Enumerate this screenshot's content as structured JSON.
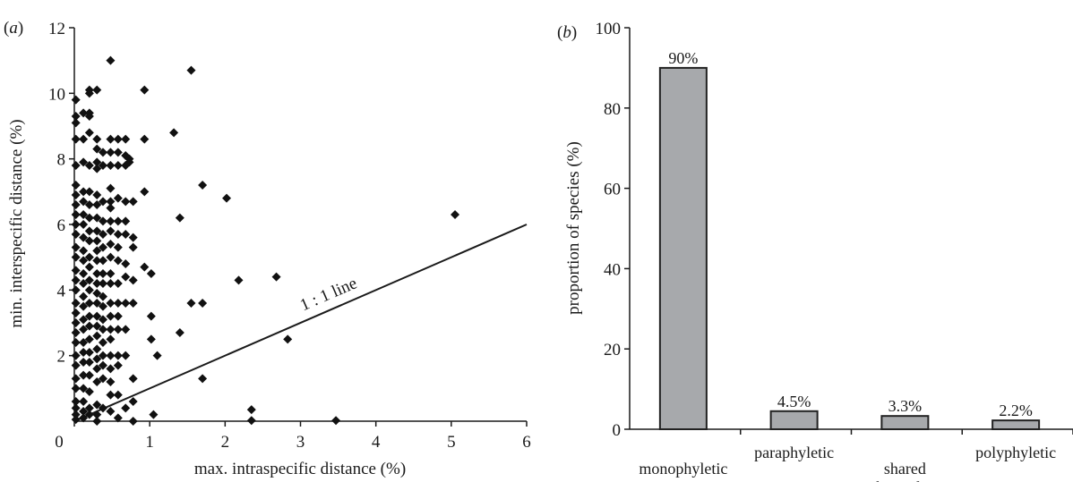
{
  "chart_data": [
    {
      "type": "scatter",
      "panel_letter": "a",
      "xlabel": "max. intraspecific distance (%)",
      "ylabel": "min. interspecific distance (%)",
      "xlim": [
        0,
        6
      ],
      "ylim": [
        0,
        12
      ],
      "x_ticks": [
        "0",
        "1",
        "2",
        "3",
        "4",
        "5",
        "6"
      ],
      "y_ticks": [
        "2",
        "4",
        "6",
        "8",
        "10",
        "12"
      ],
      "annotation": "1 : 1 line",
      "reference_line": {
        "from": [
          0,
          0
        ],
        "to": [
          6,
          6
        ]
      },
      "grid": false,
      "points": [
        [
          0.02,
          9.8
        ],
        [
          0.02,
          9.3
        ],
        [
          0.02,
          9.1
        ],
        [
          0.02,
          8.6
        ],
        [
          0.02,
          7.8
        ],
        [
          0.02,
          7.2
        ],
        [
          0.02,
          6.9
        ],
        [
          0.02,
          6.6
        ],
        [
          0.02,
          6.3
        ],
        [
          0.02,
          6.0
        ],
        [
          0.02,
          5.7
        ],
        [
          0.02,
          5.3
        ],
        [
          0.02,
          5.0
        ],
        [
          0.02,
          4.6
        ],
        [
          0.02,
          4.3
        ],
        [
          0.02,
          4.0
        ],
        [
          0.02,
          3.6
        ],
        [
          0.02,
          3.3
        ],
        [
          0.02,
          3.0
        ],
        [
          0.02,
          2.7
        ],
        [
          0.02,
          2.4
        ],
        [
          0.02,
          2.0
        ],
        [
          0.02,
          1.7
        ],
        [
          0.02,
          1.3
        ],
        [
          0.02,
          1.0
        ],
        [
          0.02,
          0.6
        ],
        [
          0.02,
          0.4
        ],
        [
          0.02,
          0.2
        ],
        [
          0.02,
          0.05
        ],
        [
          0.12,
          9.4
        ],
        [
          0.12,
          8.6
        ],
        [
          0.12,
          7.9
        ],
        [
          0.12,
          7.0
        ],
        [
          0.12,
          6.7
        ],
        [
          0.12,
          6.3
        ],
        [
          0.12,
          6.0
        ],
        [
          0.12,
          5.6
        ],
        [
          0.12,
          5.2
        ],
        [
          0.12,
          4.9
        ],
        [
          0.12,
          4.5
        ],
        [
          0.12,
          4.2
        ],
        [
          0.12,
          3.8
        ],
        [
          0.12,
          3.5
        ],
        [
          0.12,
          3.1
        ],
        [
          0.12,
          2.8
        ],
        [
          0.12,
          2.4
        ],
        [
          0.12,
          2.1
        ],
        [
          0.12,
          1.8
        ],
        [
          0.12,
          1.4
        ],
        [
          0.12,
          1.0
        ],
        [
          0.12,
          0.6
        ],
        [
          0.12,
          0.3
        ],
        [
          0.12,
          0.1
        ],
        [
          0.2,
          10.1
        ],
        [
          0.2,
          10.0
        ],
        [
          0.2,
          9.4
        ],
        [
          0.2,
          9.3
        ],
        [
          0.2,
          8.8
        ],
        [
          0.2,
          7.8
        ],
        [
          0.2,
          7.0
        ],
        [
          0.2,
          6.6
        ],
        [
          0.2,
          6.2
        ],
        [
          0.2,
          5.8
        ],
        [
          0.2,
          5.5
        ],
        [
          0.2,
          5.0
        ],
        [
          0.2,
          4.7
        ],
        [
          0.2,
          4.3
        ],
        [
          0.2,
          4.0
        ],
        [
          0.2,
          3.6
        ],
        [
          0.2,
          3.2
        ],
        [
          0.2,
          2.9
        ],
        [
          0.2,
          2.5
        ],
        [
          0.2,
          2.1
        ],
        [
          0.2,
          1.8
        ],
        [
          0.2,
          1.4
        ],
        [
          0.2,
          0.9
        ],
        [
          0.2,
          0.4
        ],
        [
          0.2,
          0.2
        ],
        [
          0.3,
          10.1
        ],
        [
          0.3,
          8.6
        ],
        [
          0.3,
          8.3
        ],
        [
          0.3,
          7.9
        ],
        [
          0.3,
          7.7
        ],
        [
          0.3,
          6.9
        ],
        [
          0.3,
          6.6
        ],
        [
          0.3,
          6.2
        ],
        [
          0.3,
          5.8
        ],
        [
          0.3,
          5.5
        ],
        [
          0.3,
          5.2
        ],
        [
          0.3,
          4.9
        ],
        [
          0.3,
          4.5
        ],
        [
          0.3,
          4.2
        ],
        [
          0.3,
          3.9
        ],
        [
          0.3,
          3.6
        ],
        [
          0.3,
          3.2
        ],
        [
          0.3,
          2.9
        ],
        [
          0.3,
          2.6
        ],
        [
          0.3,
          2.2
        ],
        [
          0.3,
          1.9
        ],
        [
          0.3,
          1.6
        ],
        [
          0.3,
          1.2
        ],
        [
          0.3,
          0.5
        ],
        [
          0.3,
          0.2
        ],
        [
          0.3,
          0.0
        ],
        [
          0.38,
          8.2
        ],
        [
          0.38,
          7.8
        ],
        [
          0.38,
          6.7
        ],
        [
          0.38,
          6.1
        ],
        [
          0.38,
          5.7
        ],
        [
          0.38,
          5.3
        ],
        [
          0.38,
          4.9
        ],
        [
          0.38,
          4.5
        ],
        [
          0.38,
          4.2
        ],
        [
          0.38,
          3.8
        ],
        [
          0.38,
          3.5
        ],
        [
          0.38,
          3.1
        ],
        [
          0.38,
          2.8
        ],
        [
          0.38,
          2.4
        ],
        [
          0.38,
          2.0
        ],
        [
          0.38,
          1.7
        ],
        [
          0.38,
          1.3
        ],
        [
          0.38,
          0.4
        ],
        [
          0.48,
          11.0
        ],
        [
          0.48,
          8.6
        ],
        [
          0.48,
          8.2
        ],
        [
          0.48,
          7.8
        ],
        [
          0.48,
          7.1
        ],
        [
          0.48,
          6.7
        ],
        [
          0.48,
          6.5
        ],
        [
          0.48,
          6.1
        ],
        [
          0.48,
          5.8
        ],
        [
          0.48,
          5.4
        ],
        [
          0.48,
          5.0
        ],
        [
          0.48,
          4.5
        ],
        [
          0.48,
          4.2
        ],
        [
          0.48,
          3.6
        ],
        [
          0.48,
          3.2
        ],
        [
          0.48,
          2.8
        ],
        [
          0.48,
          2.5
        ],
        [
          0.48,
          2.0
        ],
        [
          0.48,
          1.6
        ],
        [
          0.48,
          1.2
        ],
        [
          0.48,
          0.8
        ],
        [
          0.48,
          0.3
        ],
        [
          0.58,
          8.6
        ],
        [
          0.58,
          8.2
        ],
        [
          0.58,
          7.8
        ],
        [
          0.58,
          6.8
        ],
        [
          0.58,
          6.1
        ],
        [
          0.58,
          5.7
        ],
        [
          0.58,
          5.3
        ],
        [
          0.58,
          4.9
        ],
        [
          0.58,
          4.2
        ],
        [
          0.58,
          3.6
        ],
        [
          0.58,
          3.2
        ],
        [
          0.58,
          2.8
        ],
        [
          0.58,
          2.0
        ],
        [
          0.58,
          1.7
        ],
        [
          0.58,
          0.8
        ],
        [
          0.58,
          0.1
        ],
        [
          0.68,
          8.6
        ],
        [
          0.68,
          8.1
        ],
        [
          0.68,
          7.8
        ],
        [
          0.68,
          6.7
        ],
        [
          0.68,
          6.1
        ],
        [
          0.68,
          5.7
        ],
        [
          0.68,
          4.8
        ],
        [
          0.68,
          4.4
        ],
        [
          0.68,
          3.6
        ],
        [
          0.68,
          2.8
        ],
        [
          0.68,
          2.0
        ],
        [
          0.68,
          0.4
        ],
        [
          0.73,
          8.0
        ],
        [
          0.73,
          7.9
        ],
        [
          0.78,
          6.7
        ],
        [
          0.78,
          5.6
        ],
        [
          0.78,
          5.3
        ],
        [
          0.78,
          4.3
        ],
        [
          0.78,
          3.6
        ],
        [
          0.78,
          1.3
        ],
        [
          0.78,
          0.6
        ],
        [
          0.78,
          0.0
        ],
        [
          0.93,
          10.1
        ],
        [
          0.93,
          8.6
        ],
        [
          0.93,
          7.0
        ],
        [
          0.93,
          4.7
        ],
        [
          1.02,
          4.5
        ],
        [
          1.02,
          3.2
        ],
        [
          1.02,
          2.5
        ],
        [
          1.05,
          0.2
        ],
        [
          1.1,
          2.0
        ],
        [
          1.32,
          8.8
        ],
        [
          1.4,
          6.2
        ],
        [
          1.4,
          2.7
        ],
        [
          1.55,
          10.7
        ],
        [
          1.55,
          3.6
        ],
        [
          1.7,
          7.2
        ],
        [
          1.7,
          3.6
        ],
        [
          1.7,
          1.3
        ],
        [
          2.02,
          6.8
        ],
        [
          2.18,
          4.3
        ],
        [
          2.35,
          0.35
        ],
        [
          2.35,
          0.02
        ],
        [
          2.68,
          4.4
        ],
        [
          2.83,
          2.5
        ],
        [
          3.47,
          0.02
        ],
        [
          5.05,
          6.3
        ]
      ]
    },
    {
      "type": "bar",
      "panel_letter": "b",
      "ylabel": "proportion of species (%)",
      "xlabel": "",
      "ylim": [
        0,
        100
      ],
      "y_ticks": [
        "0",
        "20",
        "40",
        "60",
        "80",
        "100"
      ],
      "categories": [
        "monophyletic",
        "paraphyletic",
        "shared barcodes",
        "polyphyletic"
      ],
      "values": [
        90,
        4.5,
        3.3,
        2.2
      ],
      "data_labels": [
        "90%",
        "4.5%",
        "3.3%",
        "2.2%"
      ],
      "bar_color": "#a7a9ac",
      "bar_edge_color": "#222222",
      "grid": false
    }
  ]
}
